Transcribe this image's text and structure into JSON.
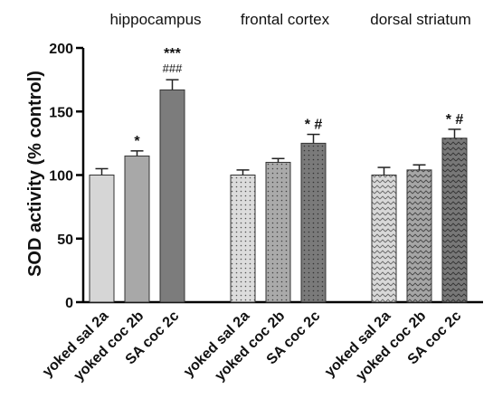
{
  "chart_data": {
    "type": "bar",
    "ylabel": "SOD activity (% control)",
    "ylim": [
      0,
      200
    ],
    "yticks": [
      0,
      50,
      100,
      150,
      200
    ],
    "grid": false,
    "categories": [
      "yoked sal 2a",
      "yoked coc 2b",
      "SA coc 2c"
    ],
    "colors": {
      "yoked sal": "#d6d6d6",
      "yoked coc": "#a8a8a8",
      "SA coc": "#7c7c7c"
    },
    "groups": [
      {
        "region": "hippocampus",
        "pattern": "solid",
        "bars": [
          {
            "label": "yoked sal 2a",
            "value": 100,
            "error": 5,
            "sig": "",
            "sig2": ""
          },
          {
            "label": "yoked coc 2b",
            "value": 115,
            "error": 4,
            "sig": "*",
            "sig2": ""
          },
          {
            "label": "SA coc 2c",
            "value": 167,
            "error": 8,
            "sig": "***",
            "sig2": "###"
          }
        ]
      },
      {
        "region": "frontal cortex",
        "pattern": "dots",
        "bars": [
          {
            "label": "yoked sal 2a",
            "value": 100,
            "error": 4,
            "sig": "",
            "sig2": ""
          },
          {
            "label": "yoked coc 2b",
            "value": 110,
            "error": 3,
            "sig": "",
            "sig2": ""
          },
          {
            "label": "SA coc 2c",
            "value": 125,
            "error": 7,
            "sig": "* #",
            "sig2": ""
          }
        ]
      },
      {
        "region": "dorsal striatum",
        "pattern": "zigzag",
        "bars": [
          {
            "label": "yoked sal 2a",
            "value": 100,
            "error": 6,
            "sig": "",
            "sig2": ""
          },
          {
            "label": "yoked coc 2b",
            "value": 104,
            "error": 4,
            "sig": "",
            "sig2": ""
          },
          {
            "label": "SA coc 2c",
            "value": 129,
            "error": 7,
            "sig": "* #",
            "sig2": ""
          }
        ]
      }
    ]
  }
}
